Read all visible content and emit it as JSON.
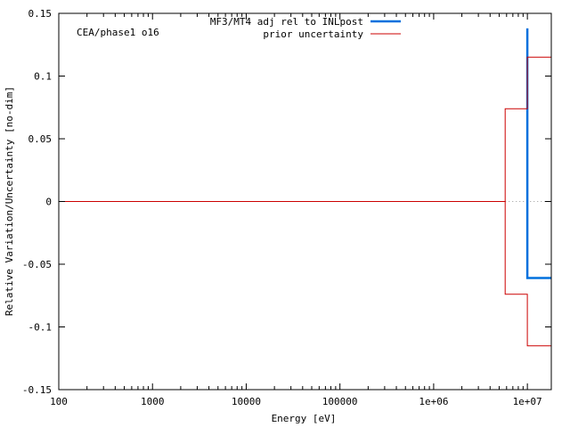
{
  "chart_data": {
    "type": "line",
    "xscale": "log",
    "xlim": [
      100,
      18000000
    ],
    "ylim": [
      -0.15,
      0.15
    ],
    "xlabel": "Energy [eV]",
    "ylabel": "Relative Variation/Uncertainty [no-dim]",
    "annotation": "CEA/phase1 o16",
    "grid": false,
    "legend_position": "top-right",
    "x_ticks": [
      {
        "value": 100,
        "label": "100"
      },
      {
        "value": 1000,
        "label": "1000"
      },
      {
        "value": 10000,
        "label": "10000"
      },
      {
        "value": 100000,
        "label": "100000"
      },
      {
        "value": 1000000,
        "label": "1e+06"
      },
      {
        "value": 10000000,
        "label": "1e+07"
      }
    ],
    "y_ticks": [
      {
        "value": 0.15,
        "label": "0.15"
      },
      {
        "value": 0.1,
        "label": "0.1"
      },
      {
        "value": 0.05,
        "label": "0.05"
      },
      {
        "value": 0,
        "label": "0"
      },
      {
        "value": -0.05,
        "label": "-0.05"
      },
      {
        "value": -0.1,
        "label": "-0.1"
      },
      {
        "value": -0.15,
        "label": "-0.15"
      }
    ],
    "series": [
      {
        "name": "MF3/MT4 adj rel to INLpost",
        "color": "#0070dd",
        "style": "step",
        "points": [
          [
            10000000,
            0.138
          ],
          [
            10000000,
            -0.061
          ],
          [
            18000000,
            -0.061
          ]
        ]
      },
      {
        "name": "prior uncertainty",
        "color": "#cc0000",
        "style": "step-band",
        "points": [
          [
            100,
            0
          ],
          [
            5800000,
            0
          ],
          [
            5800000,
            0.074
          ],
          [
            10000000,
            0.074
          ],
          [
            10000000,
            0.115
          ],
          [
            18000000,
            0.115
          ]
        ],
        "mirror_points": [
          [
            5800000,
            0
          ],
          [
            5800000,
            -0.074
          ],
          [
            10000000,
            -0.074
          ],
          [
            10000000,
            -0.115
          ],
          [
            18000000,
            -0.115
          ]
        ]
      }
    ],
    "zero_line": {
      "from": 5800000,
      "to": 18000000,
      "style": "dotted",
      "color": "#999999"
    }
  }
}
